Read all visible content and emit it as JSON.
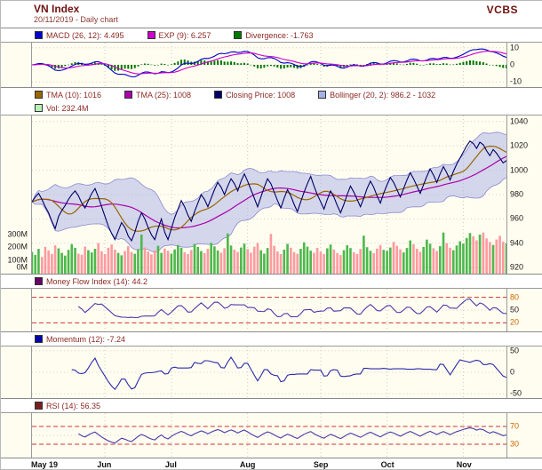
{
  "header": {
    "title": "VN Index",
    "subtitle": "20/11/2019 - Daily chart",
    "brand": "VCBS"
  },
  "chart_data": [
    {
      "id": "macd",
      "type": "line+bar",
      "name": "MACD panel",
      "legend": [
        {
          "label": "MACD (26, 12): 4.495",
          "color": "#0000cc"
        },
        {
          "label": "EXP (9): 6.257",
          "color": "#cc00cc"
        },
        {
          "label": "Divergence: -1.763",
          "color": "#007700"
        }
      ],
      "ylim": [
        -13,
        13
      ],
      "yticks": [
        {
          "label": "10",
          "v": 10
        },
        {
          "label": "0",
          "v": 0
        },
        {
          "label": "-10",
          "v": -10
        }
      ]
    },
    {
      "id": "price",
      "type": "line+area+bar",
      "name": "VN Index price with TMA, Bollinger and Volume",
      "legend": [
        {
          "label": "TMA (10): 1016",
          "color": "#996600"
        },
        {
          "label": "TMA (25): 1008",
          "color": "#aa00aa"
        },
        {
          "label": "Closing Price: 1008",
          "color": "#000066"
        },
        {
          "label": "Bollinger (20, 2): 986.2 - 1032",
          "color": "#aab0e6"
        }
      ],
      "legend2": [
        {
          "label": "Vol: 232.4M",
          "color": "#b8f0b8"
        }
      ],
      "vol_up_color": "#4db84d",
      "vol_down_color": "#ff9aa0",
      "ylim": [
        915,
        1045
      ],
      "yticks": [
        {
          "label": "1040",
          "v": 1040
        },
        {
          "label": "1020",
          "v": 1020
        },
        {
          "label": "1000",
          "v": 1000
        },
        {
          "label": "980",
          "v": 980
        },
        {
          "label": "960",
          "v": 960
        },
        {
          "label": "940",
          "v": 940
        },
        {
          "label": "920",
          "v": 920
        }
      ],
      "vol_ticks": [
        {
          "label": "300M",
          "v": 300
        },
        {
          "label": "200M",
          "v": 200
        },
        {
          "label": "100M",
          "v": 100
        },
        {
          "label": "0M",
          "v": 0
        }
      ],
      "month_ticks": [
        {
          "label": "May 19",
          "i": 0
        },
        {
          "label": "Jun",
          "i": 22
        },
        {
          "label": "Jul",
          "i": 42
        },
        {
          "label": "Aug",
          "i": 65
        },
        {
          "label": "Sep",
          "i": 87
        },
        {
          "label": "Oct",
          "i": 107
        },
        {
          "label": "Nov",
          "i": 130
        }
      ],
      "close": [
        974,
        978,
        981,
        976,
        970,
        965,
        958,
        952,
        962,
        967,
        971,
        976,
        980,
        983,
        979,
        973,
        969,
        975,
        981,
        985,
        978,
        970,
        962,
        954,
        948,
        943,
        950,
        957,
        953,
        946,
        942,
        949,
        958,
        965,
        960,
        953,
        947,
        943,
        952,
        960,
        949,
        943,
        952,
        961,
        968,
        975,
        970,
        963,
        958,
        966,
        973,
        980,
        976,
        970,
        977,
        984,
        990,
        986,
        980,
        987,
        993,
        989,
        983,
        991,
        997,
        991,
        984,
        977,
        970,
        978,
        986,
        993,
        989,
        982,
        975,
        969,
        977,
        984,
        979,
        972,
        966,
        974,
        982,
        989,
        995,
        987,
        980,
        974,
        968,
        976,
        983,
        978,
        971,
        965,
        972,
        980,
        987,
        982,
        976,
        970,
        977,
        985,
        991,
        986,
        979,
        973,
        981,
        988,
        994,
        990,
        984,
        978,
        985,
        992,
        998,
        993,
        987,
        981,
        988,
        995,
        1001,
        996,
        990,
        997,
        1003,
        998,
        992,
        999,
        1005,
        1010,
        1015,
        1020,
        1024,
        1022,
        1018,
        1023,
        1021,
        1016,
        1012,
        1017,
        1014,
        1010,
        1006,
        1008
      ],
      "volume_m": [
        165,
        142,
        188,
        127,
        203,
        176,
        149,
        215,
        192,
        158,
        137,
        181,
        224,
        196,
        152,
        143,
        205,
        178,
        161,
        189,
        232,
        170,
        148,
        196,
        221,
        183,
        157,
        139,
        172,
        208,
        164,
        151,
        186,
        296,
        199,
        168,
        146,
        177,
        212,
        158,
        191,
        173,
        152,
        184,
        217,
        196,
        163,
        148,
        179,
        225,
        202,
        171,
        156,
        188,
        234,
        207,
        176,
        159,
        193,
        305,
        214,
        182,
        165,
        198,
        228,
        186,
        159,
        204,
        233,
        178,
        152,
        195,
        302,
        211,
        169,
        148,
        183,
        226,
        197,
        164,
        151,
        189,
        238,
        205,
        174,
        158,
        196,
        167,
        148,
        192,
        221,
        183,
        156,
        141,
        178,
        215,
        194,
        162,
        149,
        187,
        288,
        201,
        173,
        155,
        190,
        218,
        181,
        173,
        198,
        241,
        212,
        184,
        161,
        195,
        252,
        223,
        189,
        166,
        202,
        258,
        227,
        193,
        171,
        208,
        312,
        231,
        197,
        178,
        214,
        246,
        228,
        271,
        308,
        284,
        252,
        296,
        312,
        267,
        241,
        218,
        259,
        287,
        243,
        232
      ]
    },
    {
      "id": "mfi",
      "type": "line",
      "name": "Money Flow Index panel",
      "legend": [
        {
          "label": "Money Flow Index (14): 44.2",
          "color": "#660066"
        }
      ],
      "line_color": "#4a3aaa",
      "guide_color": "#cc3333",
      "guides": [
        80,
        20
      ],
      "ylim": [
        0,
        100
      ],
      "yticks": [
        {
          "label": "80",
          "v": 80,
          "color": "#cc6600"
        },
        {
          "label": "50",
          "v": 50
        },
        {
          "label": "20",
          "v": 20,
          "color": "#cc6600"
        }
      ]
    },
    {
      "id": "momentum",
      "type": "line",
      "name": "Momentum panel",
      "legend": [
        {
          "label": "Momentum (12): -7.24",
          "color": "#0000aa"
        }
      ],
      "line_color": "#2a2aa8",
      "ylim": [
        -60,
        60
      ],
      "yticks": [
        {
          "label": "50",
          "v": 50
        },
        {
          "label": "0",
          "v": 0
        },
        {
          "label": "-50",
          "v": -50
        }
      ]
    },
    {
      "id": "rsi",
      "type": "line",
      "name": "RSI panel",
      "legend": [
        {
          "label": "RSI (14): 56.35",
          "color": "#7a1f1f"
        }
      ],
      "line_color": "#4a3aaa",
      "guide_color": "#cc3333",
      "guides": [
        70,
        30
      ],
      "overbought": 70,
      "fill_color": "#e03030",
      "ylim": [
        0,
        100
      ],
      "yticks": [
        {
          "label": "70",
          "v": 70,
          "color": "#cc6600"
        },
        {
          "label": "30",
          "v": 30,
          "color": "#cc6600"
        }
      ]
    }
  ]
}
